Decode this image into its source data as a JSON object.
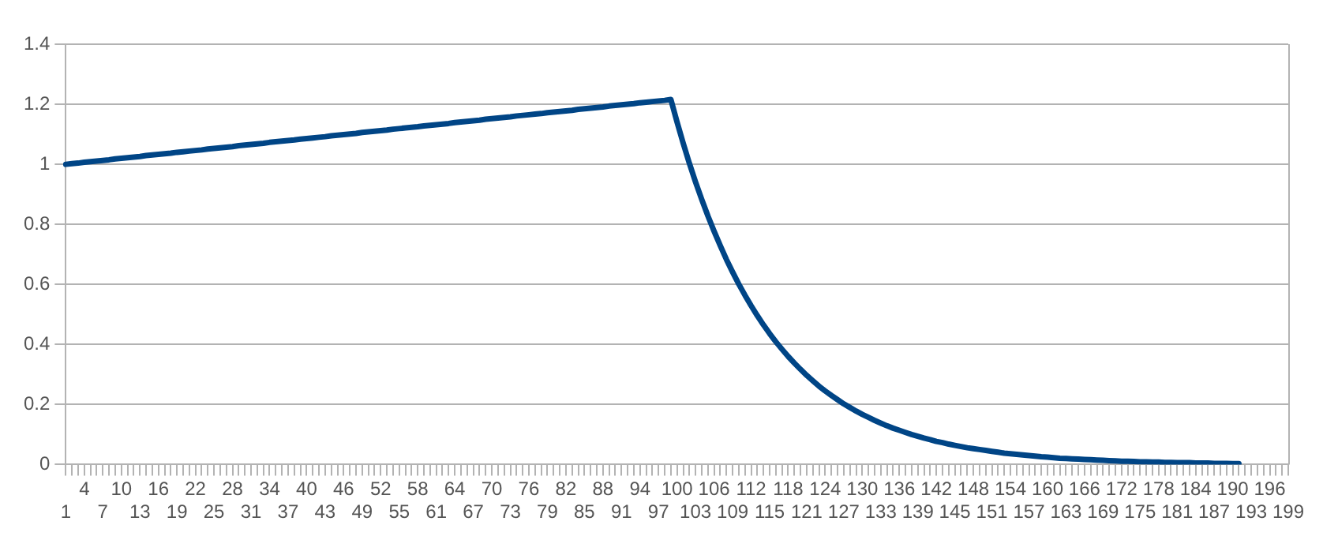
{
  "chart_data": {
    "type": "line",
    "categories": [
      "1",
      null,
      null,
      "4",
      null,
      null,
      "7",
      null,
      null,
      "10",
      null,
      null,
      "13",
      null,
      null,
      "16",
      null,
      null,
      "19",
      null,
      null,
      "22",
      null,
      null,
      "25",
      null,
      null,
      "28",
      null,
      null,
      "31",
      null,
      null,
      "34",
      null,
      null,
      "37",
      null,
      null,
      "40",
      null,
      null,
      "43",
      null,
      null,
      "46",
      null,
      null,
      "49",
      null,
      null,
      "52",
      null,
      null,
      "55",
      null,
      null,
      "58",
      null,
      null,
      "61",
      null,
      null,
      "64",
      null,
      null,
      "67",
      null,
      null,
      "70",
      null,
      null,
      "73",
      null,
      null,
      "76",
      null,
      null,
      "79",
      null,
      null,
      "82",
      null,
      null,
      "85",
      null,
      null,
      "88",
      null,
      null,
      "91",
      null,
      null,
      "94",
      null,
      null,
      "97",
      null,
      null,
      "100",
      null,
      null,
      "103",
      null,
      null,
      "106",
      null,
      null,
      "109",
      null,
      null,
      "112",
      null,
      null,
      "115",
      null,
      null,
      "118",
      null,
      null,
      "121",
      null,
      null,
      "124",
      null,
      null,
      "127",
      null,
      null,
      "130",
      null,
      null,
      "133",
      null,
      null,
      "136",
      null,
      null,
      "139",
      null,
      null,
      "142",
      null,
      null,
      "145",
      null,
      null,
      "148",
      null,
      null,
      "151",
      null,
      null,
      "154",
      null,
      null,
      "157",
      null,
      null,
      "160",
      null,
      null,
      "163",
      null,
      null,
      "166",
      null,
      null,
      "169",
      null,
      null,
      "172",
      null,
      null,
      "175",
      null,
      null,
      "178",
      null,
      null,
      "181",
      null,
      null,
      "184",
      null,
      null,
      "187",
      null,
      null,
      "190",
      null,
      null,
      "193",
      null,
      null,
      "196",
      null,
      null,
      "199"
    ],
    "series": [
      {
        "color": "#004586",
        "values": [
          1.0,
          1.002,
          1.004,
          1.007,
          1.009,
          1.011,
          1.013,
          1.015,
          1.018,
          1.02,
          1.022,
          1.024,
          1.026,
          1.029,
          1.031,
          1.033,
          1.035,
          1.037,
          1.04,
          1.042,
          1.044,
          1.046,
          1.048,
          1.051,
          1.053,
          1.055,
          1.057,
          1.059,
          1.062,
          1.064,
          1.066,
          1.068,
          1.07,
          1.073,
          1.075,
          1.077,
          1.079,
          1.081,
          1.084,
          1.086,
          1.088,
          1.09,
          1.092,
          1.095,
          1.097,
          1.099,
          1.101,
          1.103,
          1.106,
          1.108,
          1.11,
          1.112,
          1.114,
          1.117,
          1.119,
          1.121,
          1.123,
          1.125,
          1.128,
          1.13,
          1.132,
          1.134,
          1.136,
          1.139,
          1.141,
          1.143,
          1.145,
          1.147,
          1.15,
          1.152,
          1.154,
          1.156,
          1.158,
          1.161,
          1.163,
          1.165,
          1.167,
          1.169,
          1.172,
          1.174,
          1.176,
          1.178,
          1.18,
          1.183,
          1.185,
          1.187,
          1.189,
          1.191,
          1.194,
          1.196,
          1.198,
          1.2,
          1.202,
          1.205,
          1.207,
          1.209,
          1.211,
          1.213,
          1.216,
          1.141,
          1.07,
          1.003,
          0.941,
          0.883,
          0.828,
          0.777,
          0.729,
          0.683,
          0.641,
          0.601,
          0.564,
          0.529,
          0.496,
          0.465,
          0.436,
          0.409,
          0.384,
          0.36,
          0.338,
          0.317,
          0.297,
          0.279,
          0.261,
          0.245,
          0.23,
          0.216,
          0.202,
          0.19,
          0.178,
          0.167,
          0.157,
          0.147,
          0.138,
          0.129,
          0.121,
          0.114,
          0.107,
          0.1,
          0.094,
          0.088,
          0.083,
          0.077,
          0.073,
          0.068,
          0.064,
          0.06,
          0.056,
          0.053,
          0.05,
          0.047,
          0.044,
          0.041,
          0.038,
          0.036,
          0.034,
          0.032,
          0.03,
          0.028,
          0.026,
          0.025,
          0.023,
          0.021,
          0.02,
          0.019,
          0.018,
          0.017,
          0.016,
          0.015,
          0.014,
          0.013,
          0.012,
          0.011,
          0.011,
          0.01,
          0.009,
          0.009,
          0.008,
          0.008,
          0.007,
          0.007,
          0.006,
          0.006,
          0.006,
          0.005,
          0.005,
          0.005,
          0.004,
          0.004,
          0.004,
          0.003,
          0.003,
          null,
          null,
          null,
          null,
          null,
          null,
          null,
          null
        ]
      }
    ],
    "ylim": [
      0,
      1.4
    ],
    "yticks": [
      0,
      0.2,
      0.4,
      0.6,
      0.8,
      1,
      1.2,
      1.4
    ],
    "grid": "y",
    "marker": "none",
    "line_style": "solid"
  }
}
